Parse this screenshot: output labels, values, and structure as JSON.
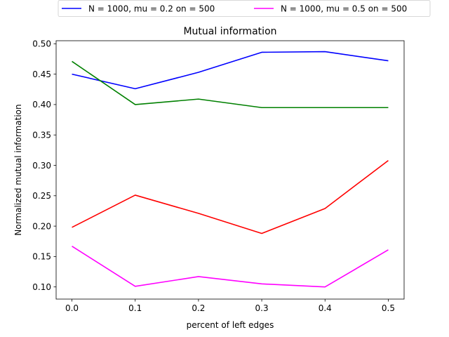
{
  "chart_data": {
    "type": "line",
    "title": "Mutual information",
    "xlabel": "percent of left edges",
    "ylabel": "Normalized mutual information",
    "x": [
      0.0,
      0.1,
      0.2,
      0.3,
      0.4,
      0.5
    ],
    "xlim": [
      -0.025,
      0.525
    ],
    "ylim": [
      0.08,
      0.505
    ],
    "xticks": [
      0.0,
      0.1,
      0.2,
      0.3,
      0.4,
      0.5
    ],
    "xtick_labels": [
      "0.0",
      "0.1",
      "0.2",
      "0.3",
      "0.4",
      "0.5"
    ],
    "yticks": [
      0.1,
      0.15,
      0.2,
      0.25,
      0.3,
      0.35,
      0.4,
      0.45,
      0.5
    ],
    "ytick_labels": [
      "0.10",
      "0.15",
      "0.20",
      "0.25",
      "0.30",
      "0.35",
      "0.40",
      "0.45",
      "0.50"
    ],
    "grid": false,
    "legend_position": "top-center-outside",
    "series": [
      {
        "name": "N = 1000, mu = 0.2 on = 500",
        "color": "#0000ff",
        "values": [
          0.45,
          0.426,
          0.453,
          0.486,
          0.487,
          0.472
        ]
      },
      {
        "color": "#008000",
        "values": [
          0.471,
          0.4,
          0.409,
          0.395,
          0.395,
          0.395
        ]
      },
      {
        "color": "#ff0000",
        "values": [
          0.198,
          0.251,
          0.221,
          0.188,
          0.229,
          0.308
        ]
      },
      {
        "name": "N = 1000, mu = 0.5 on = 500",
        "color": "#ff00ff",
        "values": [
          0.167,
          0.101,
          0.117,
          0.105,
          0.1,
          0.161
        ]
      }
    ]
  }
}
